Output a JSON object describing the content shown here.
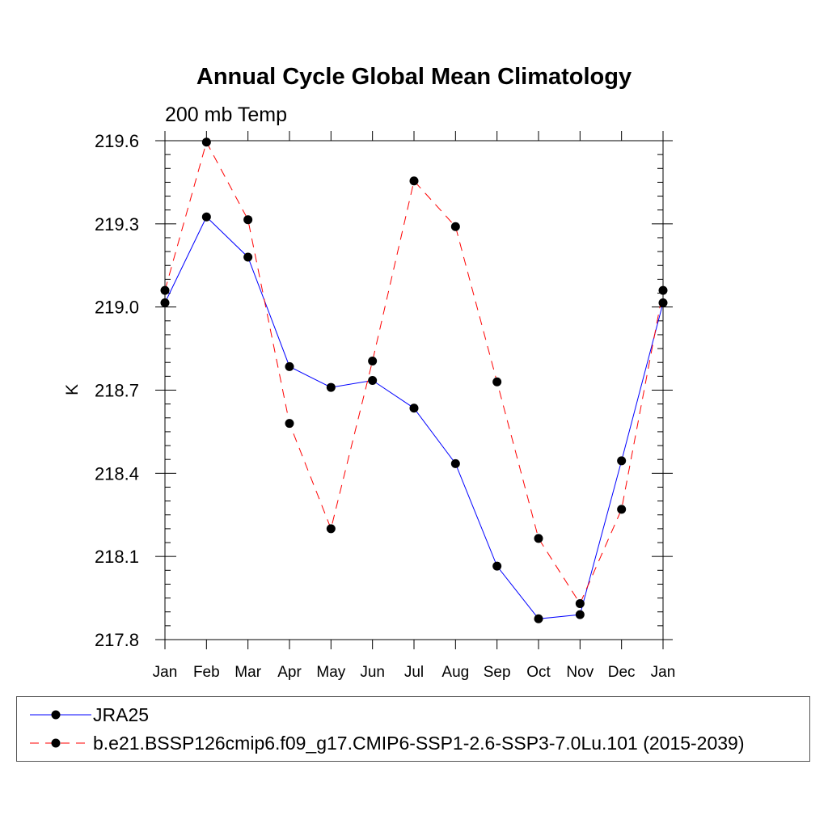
{
  "chart_data": {
    "type": "line",
    "title": "Annual Cycle Global Mean Climatology",
    "subtitle": "200 mb Temp",
    "xlabel": "",
    "ylabel": "K",
    "categories": [
      "Jan",
      "Feb",
      "Mar",
      "Apr",
      "May",
      "Jun",
      "Jul",
      "Aug",
      "Sep",
      "Oct",
      "Nov",
      "Dec",
      "Jan"
    ],
    "yticks": [
      "219.6",
      "219.3",
      "219.0",
      "218.7",
      "218.4",
      "218.1",
      "217.8"
    ],
    "ylim": [
      217.8,
      219.6
    ],
    "grid": false,
    "legend_position": "bottom",
    "series": [
      {
        "name": "JRA25",
        "color": "#0000ff",
        "dash": "solid",
        "values": [
          219.015,
          219.325,
          219.18,
          218.785,
          218.71,
          218.735,
          218.635,
          218.435,
          218.065,
          217.875,
          217.89,
          218.445,
          219.015
        ]
      },
      {
        "name": "b.e21.BSSP126cmip6.f09_g17.CMIP6-SSP1-2.6-SSP3-7.0Lu.101 (2015-2039)",
        "color": "#ff0000",
        "dash": "dashed",
        "values": [
          219.06,
          219.595,
          219.315,
          218.58,
          218.2,
          218.805,
          219.455,
          219.29,
          218.73,
          218.165,
          217.93,
          218.27,
          219.06
        ]
      }
    ]
  }
}
